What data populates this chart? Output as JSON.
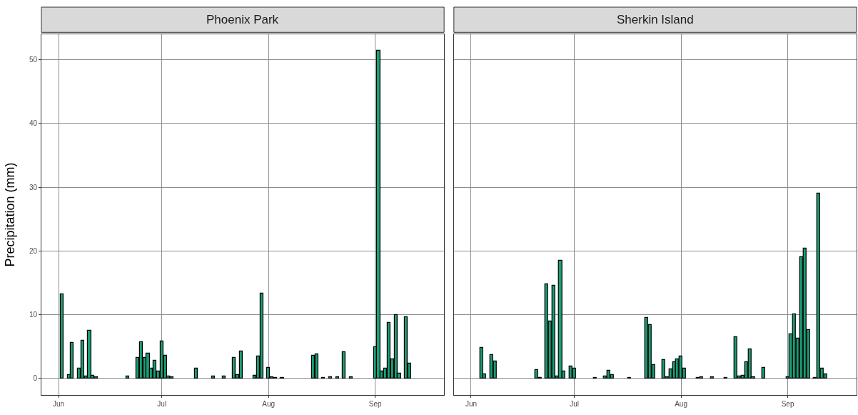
{
  "chart_data": [
    {
      "type": "bar",
      "title": "Phoenix Park",
      "ylabel": "Precipitation (mm)",
      "color": "#1b9e77",
      "grid": true,
      "x": [
        "--06-02",
        "--06-04",
        "--06-05",
        "--06-07",
        "--06-08",
        "--06-09",
        "--06-10",
        "--06-11",
        "--06-12",
        "--06-21",
        "--06-24",
        "--06-25",
        "--06-26",
        "--06-27",
        "--06-28",
        "--06-29",
        "--06-30",
        "--07-01",
        "--07-02",
        "--07-03",
        "--07-04",
        "--07-11",
        "--07-16",
        "--07-19",
        "--07-22",
        "--07-23",
        "--07-24",
        "--07-28",
        "--07-29",
        "--07-30",
        "--08-01",
        "--08-02",
        "--08-03",
        "--08-05",
        "--08-14",
        "--08-15",
        "--08-17",
        "--08-19",
        "--08-21",
        "--08-23",
        "--08-25",
        "--09-01",
        "--09-02",
        "--09-03",
        "--09-04",
        "--09-05",
        "--09-06",
        "--09-07",
        "--09-08",
        "--09-10",
        "--09-11"
      ],
      "values": [
        13.2,
        0.5,
        5.6,
        1.5,
        5.9,
        0.3,
        7.5,
        0.4,
        0.2,
        0.3,
        3.2,
        5.7,
        3.2,
        3.9,
        1.5,
        2.8,
        1.1,
        5.8,
        3.6,
        0.3,
        0.2,
        1.5,
        0.3,
        0.3,
        3.2,
        0.5,
        4.2,
        0.4,
        3.5,
        13.3,
        1.7,
        0.2,
        0.1,
        0.1,
        3.6,
        3.8,
        0.1,
        0.2,
        0.2,
        4.1,
        0.2,
        4.9,
        51.4,
        1.1,
        1.5,
        8.7,
        3.0,
        9.9,
        0.8,
        9.6,
        2.3
      ],
      "xlim": [
        "--05-27",
        "--09-21"
      ],
      "xticks": [
        {
          "value": "--06-01",
          "label": "Jun"
        },
        {
          "value": "--07-01",
          "label": "Jul"
        },
        {
          "value": "--08-01",
          "label": "Aug"
        },
        {
          "value": "--09-01",
          "label": "Sep"
        }
      ],
      "ylim": [
        -2.6,
        54
      ],
      "yticks": [
        0,
        10,
        20,
        30,
        40,
        50
      ]
    },
    {
      "type": "bar",
      "title": "Sherkin Island",
      "color": "#1b9e77",
      "grid": true,
      "tick_labels": "x",
      "x": [
        "--06-04",
        "--06-05",
        "--06-07",
        "--06-08",
        "--06-20",
        "--06-21",
        "--06-23",
        "--06-24",
        "--06-25",
        "--06-26",
        "--06-27",
        "--06-28",
        "--06-30",
        "--07-01",
        "--07-07",
        "--07-10",
        "--07-11",
        "--07-12",
        "--07-17",
        "--07-22",
        "--07-23",
        "--07-24",
        "--07-27",
        "--07-28",
        "--07-29",
        "--07-30",
        "--07-31",
        "--08-01",
        "--08-02",
        "--08-06",
        "--08-07",
        "--08-10",
        "--08-14",
        "--08-17",
        "--08-18",
        "--08-19",
        "--08-20",
        "--08-21",
        "--08-22",
        "--08-25",
        "--09-01",
        "--09-02",
        "--09-03",
        "--09-04",
        "--09-05",
        "--09-06",
        "--09-07",
        "--09-09",
        "--09-10",
        "--09-11",
        "--09-12"
      ],
      "values": [
        4.8,
        0.6,
        3.7,
        2.7,
        1.3,
        0.1,
        14.8,
        8.9,
        14.6,
        0.3,
        18.5,
        1.1,
        1.9,
        1.5,
        0.1,
        0.3,
        1.2,
        0.5,
        0.1,
        9.5,
        8.4,
        2.1,
        2.9,
        0.2,
        1.4,
        2.5,
        3.0,
        3.5,
        1.5,
        0.1,
        0.2,
        0.2,
        0.1,
        6.5,
        0.3,
        0.4,
        2.6,
        4.6,
        0.2,
        1.7,
        0.2,
        6.9,
        10.1,
        6.2,
        19.0,
        20.4,
        7.6,
        0.1,
        29.0,
        1.6,
        0.6
      ],
      "xlim": [
        "--05-27",
        "--09-21"
      ],
      "xticks": [
        {
          "value": "--06-01",
          "label": "Jun"
        },
        {
          "value": "--07-01",
          "label": "Jul"
        },
        {
          "value": "--08-01",
          "label": "Aug"
        },
        {
          "value": "--09-01",
          "label": "Sep"
        }
      ],
      "ylim": [
        -2.6,
        54
      ],
      "yticks": [
        0,
        10,
        20,
        30,
        40,
        50
      ]
    }
  ]
}
